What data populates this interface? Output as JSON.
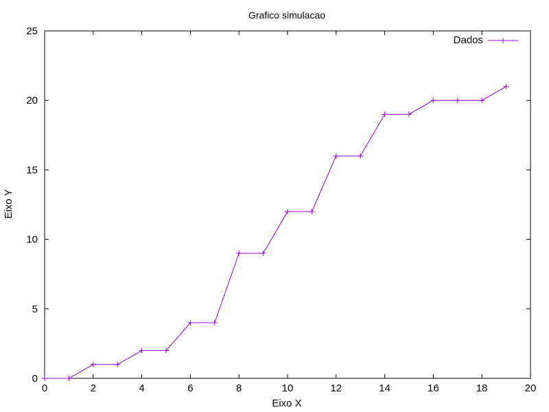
{
  "chart_data": {
    "type": "line",
    "title": "Grafico simulacao",
    "xlabel": "Eixo X",
    "ylabel": "Eixo Y",
    "xlim": [
      0,
      20
    ],
    "ylim": [
      0,
      25
    ],
    "xticks": [
      0,
      2,
      4,
      6,
      8,
      10,
      12,
      14,
      16,
      18,
      20
    ],
    "yticks": [
      0,
      5,
      10,
      15,
      20,
      25
    ],
    "grid": false,
    "legend_position": "top-right",
    "series": [
      {
        "name": "Dados",
        "color": "#9400d3",
        "marker": "plus",
        "x": [
          0,
          1,
          2,
          3,
          4,
          5,
          6,
          7,
          8,
          9,
          10,
          11,
          12,
          13,
          14,
          15,
          16,
          17,
          18,
          19
        ],
        "y": [
          0,
          0,
          1,
          1,
          2,
          2,
          4,
          4,
          9,
          9,
          12,
          12,
          16,
          16,
          19,
          19,
          20,
          20,
          20,
          21
        ]
      }
    ]
  }
}
